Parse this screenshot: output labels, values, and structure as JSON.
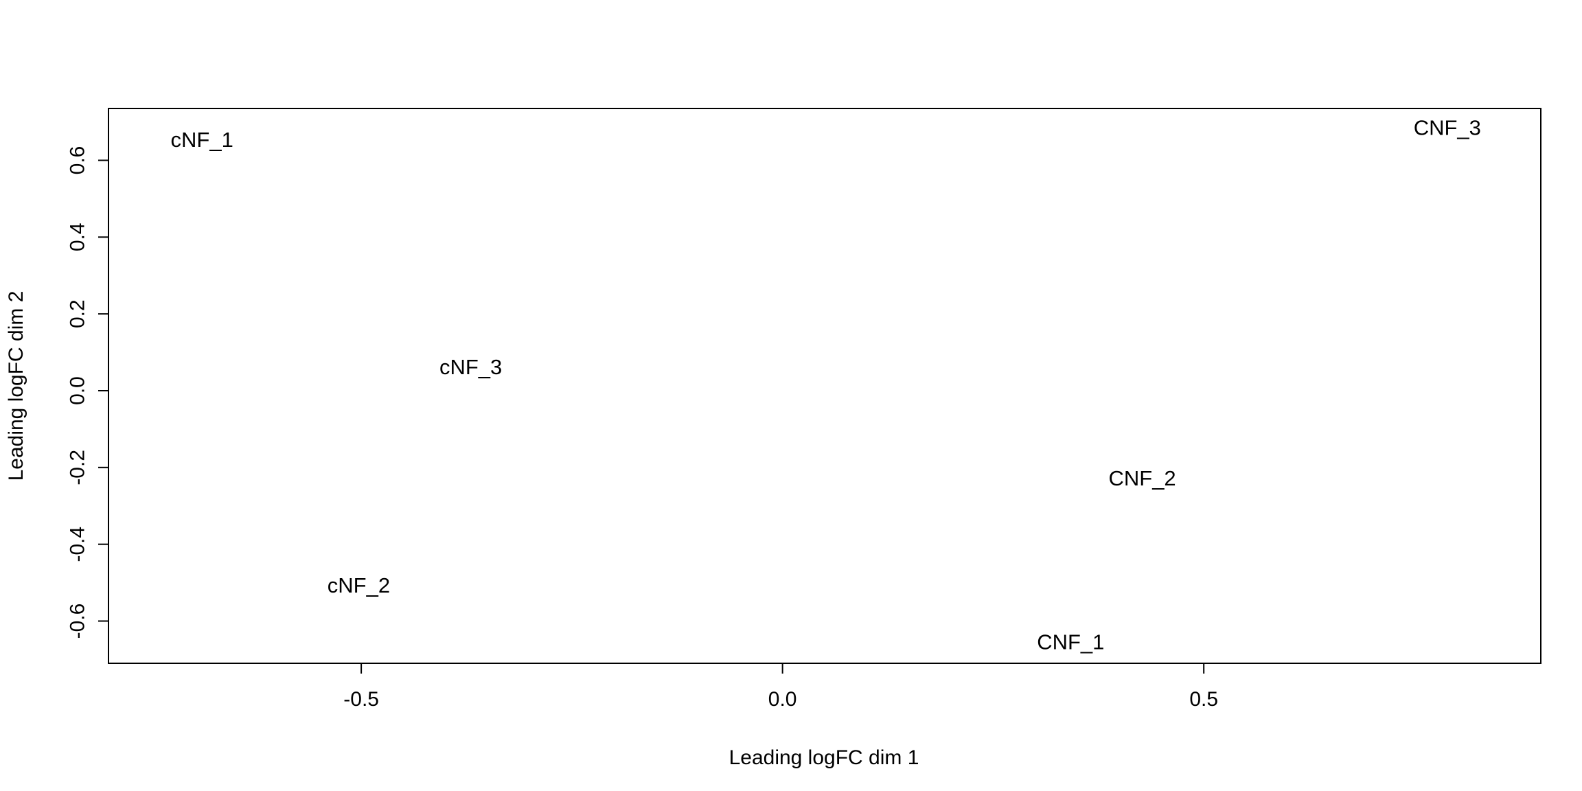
{
  "chart_data": {
    "type": "scatter",
    "title": "",
    "xlabel": "Leading logFC dim 1",
    "ylabel": "Leading logFC dim 2",
    "xlim": [
      -0.8,
      0.9
    ],
    "ylim": [
      -0.71,
      0.735
    ],
    "x_ticks": [
      -0.5,
      0.0,
      0.5
    ],
    "x_tick_labels": [
      "-0.5",
      "0.0",
      "0.5"
    ],
    "y_ticks": [
      -0.6,
      -0.4,
      -0.2,
      0.0,
      0.2,
      0.4,
      0.6
    ],
    "y_tick_labels": [
      "-0.6",
      "-0.4",
      "-0.2",
      "0.0",
      "0.2",
      "0.4",
      "0.6"
    ],
    "grid": false,
    "legend": "none",
    "points": [
      {
        "label": "cNF_1",
        "x": -0.689,
        "y": 0.654,
        "color": "#000000"
      },
      {
        "label": "cNF_2",
        "x": -0.503,
        "y": -0.507,
        "color": "#000000"
      },
      {
        "label": "cNF_3",
        "x": -0.37,
        "y": 0.062,
        "color": "#000000"
      },
      {
        "label": "CNF_1",
        "x": 0.342,
        "y": -0.655,
        "color": "#ff0000"
      },
      {
        "label": "CNF_2",
        "x": 0.427,
        "y": -0.228,
        "color": "#ff0000"
      },
      {
        "label": "CNF_3",
        "x": 0.789,
        "y": 0.685,
        "color": "#ff0000"
      }
    ]
  }
}
